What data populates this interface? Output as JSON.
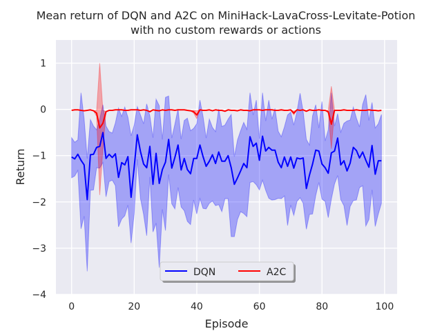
{
  "chart_data": {
    "type": "line",
    "title": "Mean return of DQN and A2C on MiniHack-LavaCross-Levitate-Potion",
    "subtitle": "with no custom rewards or actions",
    "xlabel": "Episode",
    "ylabel": "Return",
    "xlim": [
      -5,
      104
    ],
    "ylim": [
      -4,
      1.5
    ],
    "x_ticks": [
      0,
      20,
      40,
      60,
      80,
      100
    ],
    "y_ticks": [
      -4,
      -3,
      -2,
      -1,
      0,
      1
    ],
    "x_tick_labels": [
      "0",
      "20",
      "40",
      "60",
      "80",
      "100"
    ],
    "y_tick_labels": [
      "−4",
      "−3",
      "−2",
      "−1",
      "0",
      "1"
    ],
    "grid": true,
    "legend": {
      "location": "bottom-center",
      "entries": [
        "DQN",
        "A2C"
      ]
    },
    "series": [
      {
        "name": "DQN",
        "color": "#0000ff",
        "band_color": "#0000ff",
        "x_start": 0,
        "values": [
          -1.03,
          -1.07,
          -0.97,
          -1.1,
          -1.2,
          -1.95,
          -0.98,
          -0.97,
          -0.82,
          -0.8,
          -0.5,
          -1.06,
          -0.97,
          -1.04,
          -0.96,
          -1.47,
          -1.15,
          -1.2,
          -1.02,
          -1.9,
          -1.25,
          -0.55,
          -0.91,
          -1.18,
          -1.26,
          -0.8,
          -1.62,
          -0.95,
          -1.6,
          -1.3,
          -1.14,
          -0.65,
          -1.27,
          -1.04,
          -0.77,
          -1.31,
          -1.06,
          -1.3,
          -1.39,
          -1.06,
          -1.06,
          -0.77,
          -1.02,
          -1.23,
          -1.12,
          -0.98,
          -1.17,
          -0.92,
          -1.12,
          -1.12,
          -1.0,
          -1.26,
          -1.62,
          -1.48,
          -1.33,
          -1.17,
          -1.26,
          -0.59,
          -0.8,
          -0.73,
          -1.1,
          -0.58,
          -0.9,
          -0.82,
          -0.88,
          -0.88,
          -1.14,
          -1.26,
          -1.03,
          -1.23,
          -1.03,
          -1.27,
          -1.05,
          -1.07,
          -1.05,
          -1.71,
          -1.42,
          -1.18,
          -0.88,
          -0.9,
          -1.18,
          -1.26,
          -1.38,
          -0.94,
          -0.9,
          -0.62,
          -1.2,
          -1.11,
          -1.33,
          -1.16,
          -0.82,
          -0.89,
          -1.05,
          -0.92,
          -1.1,
          -1.25,
          -0.78,
          -1.4,
          -1.11,
          -1.11
        ],
        "band_upper": [
          -0.61,
          -0.71,
          -0.66,
          0.36,
          -0.2,
          -1.06,
          -0.22,
          -0.36,
          -0.44,
          -0.21,
          0.1,
          -0.36,
          -0.48,
          -0.51,
          -0.29,
          0.03,
          -0.15,
          0.05,
          -0.17,
          -0.57,
          -0.34,
          0.06,
          -0.12,
          -0.31,
          0.12,
          -0.14,
          -0.61,
          0.22,
          0.08,
          -0.65,
          0.26,
          0.29,
          -0.62,
          -0.32,
          0.01,
          -0.64,
          -0.24,
          -0.19,
          -0.46,
          -0.41,
          -0.31,
          0.2,
          -0.15,
          -0.62,
          -0.21,
          -0.39,
          -0.48,
          0.01,
          -0.37,
          -0.34,
          -0.21,
          -0.11,
          -1.02,
          -0.66,
          -0.46,
          -0.28,
          -0.43,
          0.36,
          -0.12,
          0.2,
          -0.63,
          0.36,
          -0.25,
          0.2,
          -0.21,
          0.02,
          -0.47,
          -0.59,
          -0.38,
          -0.12,
          -0.06,
          -0.34,
          -0.05,
          0.35,
          -0.05,
          -0.65,
          -0.77,
          -0.14,
          0.1,
          -0.4,
          0.17,
          -0.68,
          -0.44,
          0.36,
          -0.36,
          -0.09,
          -0.49,
          -0.3,
          -0.25,
          -0.23,
          0.05,
          -0.19,
          -0.38,
          0.11,
          0.32,
          -0.24,
          0.15,
          -0.4,
          -0.31,
          -0.11
        ],
        "band_lower": [
          -1.48,
          -1.44,
          -1.32,
          -2.58,
          -2.31,
          -3.5,
          -1.75,
          -1.74,
          -1.26,
          -1.27,
          -1.15,
          -1.89,
          -1.56,
          -1.53,
          -1.65,
          -2.54,
          -2.37,
          -2.3,
          -2.07,
          -2.89,
          -2.26,
          -1.08,
          -1.93,
          -2.27,
          -2.73,
          -1.46,
          -2.65,
          -2.46,
          -3.42,
          -2.16,
          -2.62,
          -1.41,
          -2.04,
          -2.15,
          -1.69,
          -2.11,
          -2.19,
          -2.42,
          -2.49,
          -1.96,
          -2.26,
          -1.93,
          -2.14,
          -2.15,
          -2.03,
          -1.98,
          -2.08,
          -2.06,
          -2.21,
          -1.93,
          -1.93,
          -2.75,
          -2.75,
          -2.38,
          -2.21,
          -2.25,
          -2.32,
          -1.58,
          -1.56,
          -1.63,
          -1.74,
          -1.53,
          -1.75,
          -1.92,
          -1.96,
          -1.95,
          -1.92,
          -1.93,
          -1.87,
          -2.51,
          -2.07,
          -2.29,
          -1.99,
          -1.91,
          -2.03,
          -2.59,
          -2.27,
          -2.26,
          -1.86,
          -1.58,
          -1.94,
          -1.99,
          -2.34,
          -1.94,
          -1.61,
          -1.43,
          -1.95,
          -2.08,
          -2.51,
          -2.1,
          -1.97,
          -1.96,
          -1.69,
          -1.65,
          -2.52,
          -2.38,
          -1.74,
          -2.53,
          -2.26,
          -2.03
        ]
      },
      {
        "name": "A2C",
        "color": "#ff0000",
        "band_color": "#ff0000",
        "x_start": 0,
        "values": [
          -0.02,
          -0.01,
          -0.01,
          -0.02,
          -0.03,
          -0.02,
          -0.01,
          -0.03,
          -0.08,
          -0.4,
          -0.3,
          -0.05,
          -0.02,
          -0.02,
          -0.01,
          -0.01,
          -0.01,
          -0.02,
          -0.02,
          -0.01,
          -0.01,
          -0.01,
          -0.02,
          -0.01,
          -0.02,
          -0.05,
          -0.01,
          -0.02,
          -0.03,
          -0.01,
          -0.02,
          -0.01,
          -0.01,
          -0.02,
          -0.01,
          -0.01,
          -0.01,
          -0.02,
          -0.03,
          -0.05,
          -0.12,
          -0.01,
          -0.02,
          -0.02,
          -0.01,
          -0.03,
          -0.01,
          -0.02,
          -0.02,
          -0.04,
          -0.01,
          -0.02,
          -0.02,
          -0.03,
          -0.01,
          -0.02,
          -0.02,
          -0.03,
          -0.01,
          -0.01,
          -0.01,
          -0.02,
          -0.01,
          -0.01,
          -0.01,
          -0.02,
          -0.02,
          -0.01,
          -0.02,
          -0.02,
          -0.01,
          -0.08,
          -0.01,
          -0.02,
          -0.01,
          -0.04,
          -0.01,
          -0.02,
          -0.02,
          -0.01,
          -0.02,
          -0.02,
          -0.05,
          -0.32,
          -0.02,
          -0.02,
          -0.02,
          -0.01,
          -0.02,
          -0.02,
          -0.02,
          -0.01,
          -0.02,
          -0.02,
          -0.02,
          -0.01,
          -0.02,
          -0.02,
          -0.03,
          -0.02
        ],
        "band_upper": [
          -0.02,
          -0.01,
          -0.01,
          -0.02,
          -0.03,
          -0.02,
          -0.01,
          -0.03,
          -0.02,
          1.0,
          -0.02,
          -0.05,
          -0.02,
          -0.02,
          -0.01,
          -0.01,
          -0.01,
          -0.02,
          -0.02,
          -0.01,
          -0.01,
          -0.01,
          -0.02,
          -0.01,
          -0.02,
          -0.05,
          -0.01,
          -0.02,
          -0.03,
          -0.01,
          -0.02,
          -0.01,
          -0.01,
          -0.02,
          -0.01,
          -0.01,
          -0.01,
          -0.02,
          -0.03,
          -0.02,
          -0.03,
          -0.01,
          -0.02,
          -0.02,
          -0.01,
          -0.03,
          -0.01,
          -0.02,
          -0.02,
          -0.04,
          -0.01,
          -0.02,
          -0.02,
          -0.03,
          -0.01,
          -0.02,
          -0.02,
          -0.03,
          -0.01,
          -0.01,
          -0.01,
          -0.02,
          -0.01,
          -0.01,
          -0.01,
          -0.02,
          -0.02,
          -0.01,
          -0.02,
          -0.02,
          -0.01,
          -0.04,
          -0.01,
          -0.02,
          -0.01,
          -0.04,
          -0.01,
          -0.02,
          -0.02,
          -0.01,
          -0.02,
          -0.02,
          -0.02,
          0.5,
          -0.02,
          -0.02,
          -0.02,
          -0.01,
          -0.02,
          -0.02,
          -0.02,
          -0.01,
          -0.02,
          -0.02,
          -0.02,
          -0.01,
          -0.02,
          -0.02,
          -0.03,
          -0.02
        ],
        "band_lower": [
          -0.02,
          -0.01,
          -0.01,
          -0.02,
          -0.03,
          -0.02,
          -0.01,
          -0.03,
          -0.15,
          -1.85,
          -0.85,
          -0.05,
          -0.02,
          -0.02,
          -0.01,
          -0.01,
          -0.01,
          -0.02,
          -0.02,
          -0.01,
          -0.01,
          -0.01,
          -0.02,
          -0.01,
          -0.02,
          -0.05,
          -0.01,
          -0.02,
          -0.03,
          -0.01,
          -0.02,
          -0.01,
          -0.01,
          -0.02,
          -0.01,
          -0.01,
          -0.01,
          -0.02,
          -0.03,
          -0.08,
          -0.2,
          -0.01,
          -0.02,
          -0.02,
          -0.01,
          -0.03,
          -0.01,
          -0.02,
          -0.02,
          -0.04,
          -0.01,
          -0.02,
          -0.02,
          -0.03,
          -0.01,
          -0.02,
          -0.02,
          -0.03,
          -0.01,
          -0.01,
          -0.01,
          -0.02,
          -0.01,
          -0.01,
          -0.01,
          -0.02,
          -0.02,
          -0.01,
          -0.02,
          -0.02,
          -0.01,
          -0.12,
          -0.01,
          -0.02,
          -0.01,
          -0.04,
          -0.01,
          -0.02,
          -0.02,
          -0.01,
          -0.02,
          -0.02,
          -0.08,
          -0.85,
          -0.02,
          -0.02,
          -0.02,
          -0.01,
          -0.02,
          -0.02,
          -0.02,
          -0.01,
          -0.02,
          -0.02,
          -0.02,
          -0.01,
          -0.02,
          -0.02,
          -0.03,
          -0.02
        ]
      }
    ]
  }
}
